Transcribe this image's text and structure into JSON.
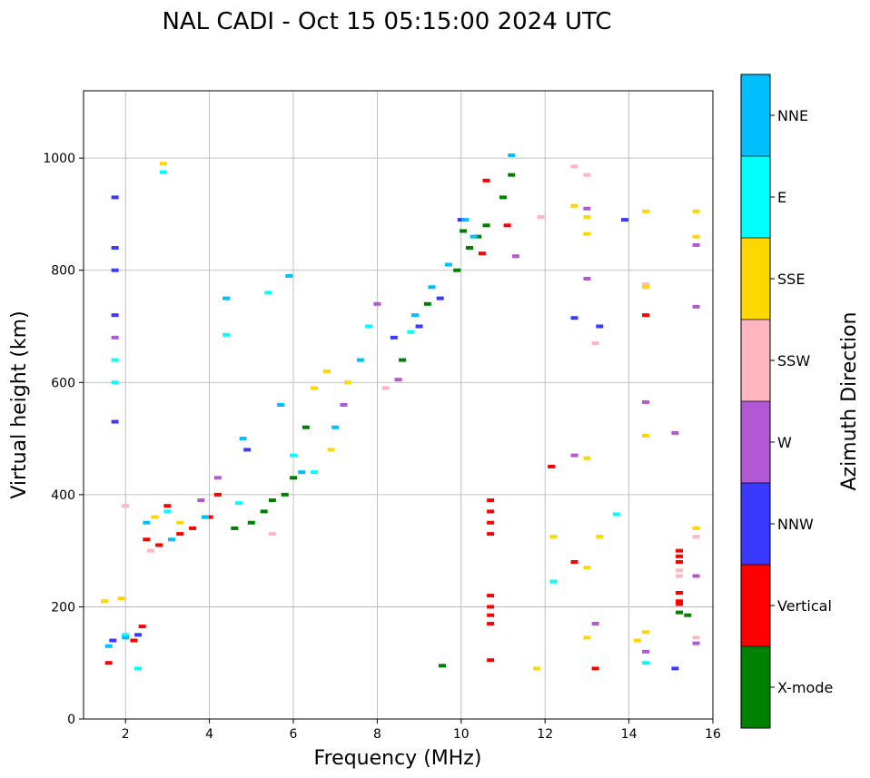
{
  "chart_data": {
    "type": "scatter",
    "title": "NAL CADI - Oct 15 05:15:00 2024 UTC",
    "xlabel": "Frequency (MHz)",
    "ylabel": "Virtual height (km)",
    "xlim": [
      1,
      16
    ],
    "ylim": [
      0,
      1120
    ],
    "xticks": [
      2,
      4,
      6,
      8,
      10,
      12,
      14,
      16
    ],
    "yticks": [
      0,
      200,
      400,
      600,
      800,
      1000
    ],
    "grid": true,
    "colorbar": {
      "label": "Azimuth Direction",
      "categories": [
        {
          "name": "X-mode",
          "color": "#008000"
        },
        {
          "name": "Vertical",
          "color": "#ff0000"
        },
        {
          "name": "NNW",
          "color": "#3a3aff"
        },
        {
          "name": "W",
          "color": "#b257d6"
        },
        {
          "name": "SSW",
          "color": "#ffb6c1"
        },
        {
          "name": "SSE",
          "color": "#ffd700"
        },
        {
          "name": "E",
          "color": "#00ffff"
        },
        {
          "name": "NNE",
          "color": "#00bfff"
        }
      ]
    },
    "series": [
      {
        "name": "X-mode",
        "points": [
          [
            9.55,
            95
          ],
          [
            10.4,
            860
          ],
          [
            10.6,
            880
          ],
          [
            11.0,
            930
          ],
          [
            15.2,
            190
          ],
          [
            15.4,
            185
          ],
          [
            10.2,
            840
          ],
          [
            9.9,
            800
          ],
          [
            9.2,
            740
          ],
          [
            5.0,
            350
          ],
          [
            5.5,
            390
          ],
          [
            5.8,
            400
          ],
          [
            6.3,
            520
          ],
          [
            8.6,
            640
          ],
          [
            10.05,
            870
          ],
          [
            11.2,
            970
          ],
          [
            4.6,
            340
          ],
          [
            5.3,
            370
          ],
          [
            6.0,
            430
          ]
        ]
      },
      {
        "name": "Vertical",
        "points": [
          [
            10.7,
            390
          ],
          [
            10.7,
            370
          ],
          [
            10.7,
            350
          ],
          [
            10.7,
            330
          ],
          [
            10.7,
            220
          ],
          [
            10.7,
            200
          ],
          [
            10.7,
            185
          ],
          [
            10.7,
            170
          ],
          [
            10.7,
            105
          ],
          [
            12.15,
            450
          ],
          [
            12.7,
            280
          ],
          [
            13.2,
            90
          ],
          [
            14.4,
            720
          ],
          [
            15.2,
            300
          ],
          [
            15.2,
            290
          ],
          [
            15.2,
            280
          ],
          [
            15.2,
            225
          ],
          [
            15.2,
            210
          ],
          [
            15.2,
            205
          ],
          [
            10.6,
            960
          ],
          [
            11.1,
            880
          ],
          [
            10.5,
            830
          ],
          [
            2.5,
            320
          ],
          [
            2.8,
            310
          ],
          [
            3.3,
            330
          ],
          [
            3.6,
            340
          ],
          [
            4.0,
            360
          ],
          [
            2.2,
            140
          ],
          [
            1.6,
            100
          ],
          [
            2.4,
            165
          ],
          [
            4.2,
            400
          ],
          [
            3.0,
            380
          ]
        ]
      },
      {
        "name": "NNW",
        "points": [
          [
            1.75,
            930
          ],
          [
            1.75,
            840
          ],
          [
            1.75,
            800
          ],
          [
            1.75,
            720
          ],
          [
            1.75,
            530
          ],
          [
            13.3,
            700
          ],
          [
            12.7,
            715
          ],
          [
            13.9,
            890
          ],
          [
            15.1,
            90
          ],
          [
            10.0,
            890
          ],
          [
            9.5,
            750
          ],
          [
            4.9,
            480
          ],
          [
            2.3,
            150
          ],
          [
            1.7,
            140
          ],
          [
            9.0,
            700
          ],
          [
            8.4,
            680
          ]
        ]
      },
      {
        "name": "W",
        "points": [
          [
            1.75,
            680
          ],
          [
            15.6,
            845
          ],
          [
            15.6,
            735
          ],
          [
            15.6,
            255
          ],
          [
            15.6,
            135
          ],
          [
            14.4,
            565
          ],
          [
            15.1,
            510
          ],
          [
            14.4,
            120
          ],
          [
            13.2,
            170
          ],
          [
            13.0,
            910
          ],
          [
            13.0,
            785
          ],
          [
            8.0,
            740
          ],
          [
            8.5,
            605
          ],
          [
            7.2,
            560
          ],
          [
            12.7,
            470
          ],
          [
            4.2,
            430
          ],
          [
            3.8,
            390
          ],
          [
            11.3,
            825
          ]
        ]
      },
      {
        "name": "SSW",
        "points": [
          [
            12.7,
            985
          ],
          [
            13.0,
            970
          ],
          [
            11.9,
            895
          ],
          [
            13.2,
            670
          ],
          [
            15.6,
            325
          ],
          [
            15.2,
            265
          ],
          [
            15.2,
            255
          ],
          [
            15.6,
            145
          ],
          [
            14.4,
            775
          ],
          [
            2.0,
            380
          ],
          [
            2.6,
            300
          ],
          [
            5.5,
            330
          ],
          [
            8.2,
            590
          ]
        ]
      },
      {
        "name": "SSE",
        "points": [
          [
            15.6,
            905
          ],
          [
            15.6,
            860
          ],
          [
            14.4,
            905
          ],
          [
            13.0,
            895
          ],
          [
            13.0,
            865
          ],
          [
            12.7,
            915
          ],
          [
            14.4,
            505
          ],
          [
            13.0,
            465
          ],
          [
            13.3,
            325
          ],
          [
            13.0,
            270
          ],
          [
            12.2,
            325
          ],
          [
            14.2,
            140
          ],
          [
            14.4,
            155
          ],
          [
            13.0,
            145
          ],
          [
            11.8,
            90
          ],
          [
            6.9,
            480
          ],
          [
            6.8,
            620
          ],
          [
            6.5,
            590
          ],
          [
            7.3,
            600
          ],
          [
            2.9,
            990
          ],
          [
            1.5,
            210
          ],
          [
            1.9,
            215
          ],
          [
            2.7,
            360
          ],
          [
            3.3,
            350
          ],
          [
            15.6,
            340
          ],
          [
            14.4,
            770
          ]
        ]
      },
      {
        "name": "E",
        "points": [
          [
            1.75,
            640
          ],
          [
            1.75,
            600
          ],
          [
            2.9,
            975
          ],
          [
            14.4,
            100
          ],
          [
            13.7,
            365
          ],
          [
            12.2,
            245
          ],
          [
            4.4,
            685
          ],
          [
            5.4,
            760
          ],
          [
            6.0,
            470
          ],
          [
            6.5,
            440
          ],
          [
            7.8,
            700
          ],
          [
            2.3,
            90
          ],
          [
            2.0,
            150
          ],
          [
            8.8,
            690
          ],
          [
            4.7,
            385
          ],
          [
            3.0,
            370
          ]
        ]
      },
      {
        "name": "NNE",
        "points": [
          [
            11.2,
            1005
          ],
          [
            10.1,
            890
          ],
          [
            9.3,
            770
          ],
          [
            8.9,
            720
          ],
          [
            7.6,
            640
          ],
          [
            7.0,
            520
          ],
          [
            6.2,
            440
          ],
          [
            5.7,
            560
          ],
          [
            5.9,
            790
          ],
          [
            4.4,
            750
          ],
          [
            4.8,
            500
          ],
          [
            3.9,
            360
          ],
          [
            3.1,
            320
          ],
          [
            2.5,
            350
          ],
          [
            1.6,
            130
          ],
          [
            2.0,
            145
          ],
          [
            9.7,
            810
          ],
          [
            10.3,
            860
          ]
        ]
      }
    ]
  }
}
